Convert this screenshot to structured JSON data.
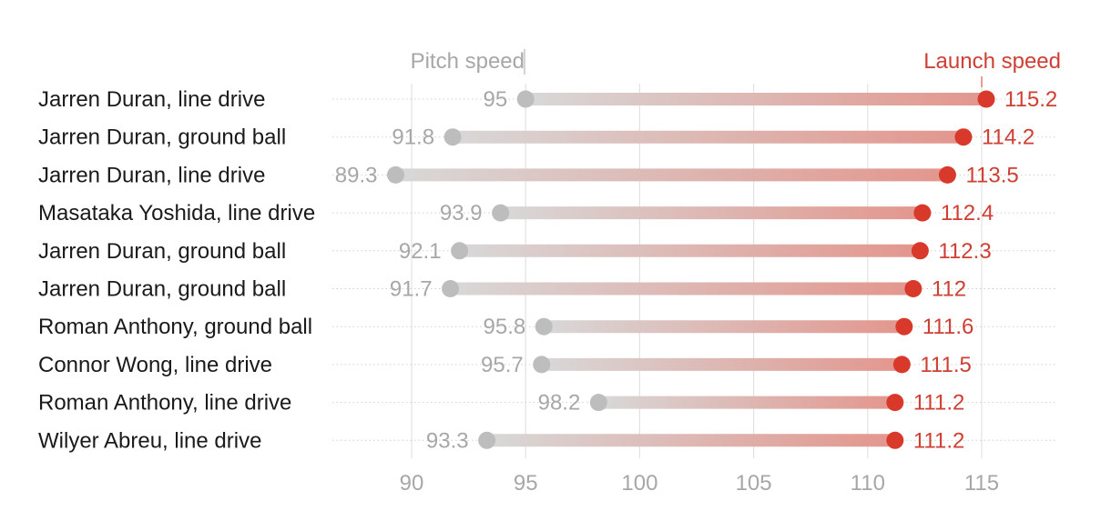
{
  "chart_data": {
    "type": "dumbbell",
    "legend": {
      "pitch": "Pitch speed",
      "launch": "Launch speed"
    },
    "xlim": [
      88.5,
      118.2
    ],
    "xticks": [
      90,
      95,
      100,
      105,
      110,
      115
    ],
    "xtick_labels": [
      "90",
      "95",
      "100",
      "105",
      "110",
      "115"
    ],
    "grid": true,
    "colors": {
      "pitch": "#bdbdbd",
      "launch": "#d9392b",
      "text": "#1a1a1a",
      "tick": "#a7a7a7"
    },
    "rows": [
      {
        "label": "Jarren Duran, line drive",
        "pitch": 95,
        "pitch_label": "95",
        "launch": 115.2,
        "launch_label": "115.2"
      },
      {
        "label": "Jarren Duran, ground ball",
        "pitch": 91.8,
        "pitch_label": "91.8",
        "launch": 114.2,
        "launch_label": "114.2"
      },
      {
        "label": "Jarren Duran, line drive",
        "pitch": 89.3,
        "pitch_label": "89.3",
        "launch": 113.5,
        "launch_label": "113.5"
      },
      {
        "label": "Masataka Yoshida, line drive",
        "pitch": 93.9,
        "pitch_label": "93.9",
        "launch": 112.4,
        "launch_label": "112.4"
      },
      {
        "label": "Jarren Duran, ground ball",
        "pitch": 92.1,
        "pitch_label": "92.1",
        "launch": 112.3,
        "launch_label": "112.3"
      },
      {
        "label": "Jarren Duran, ground ball",
        "pitch": 91.7,
        "pitch_label": "91.7",
        "launch": 112,
        "launch_label": "112"
      },
      {
        "label": "Roman Anthony, ground ball",
        "pitch": 95.8,
        "pitch_label": "95.8",
        "launch": 111.6,
        "launch_label": "111.6"
      },
      {
        "label": "Connor Wong, line drive",
        "pitch": 95.7,
        "pitch_label": "95.7",
        "launch": 111.5,
        "launch_label": "111.5"
      },
      {
        "label": "Roman Anthony, line drive",
        "pitch": 98.2,
        "pitch_label": "98.2",
        "launch": 111.2,
        "launch_label": "111.2"
      },
      {
        "label": "Wilyer Abreu, line drive",
        "pitch": 93.3,
        "pitch_label": "93.3",
        "launch": 111.2,
        "launch_label": "111.2"
      }
    ]
  }
}
